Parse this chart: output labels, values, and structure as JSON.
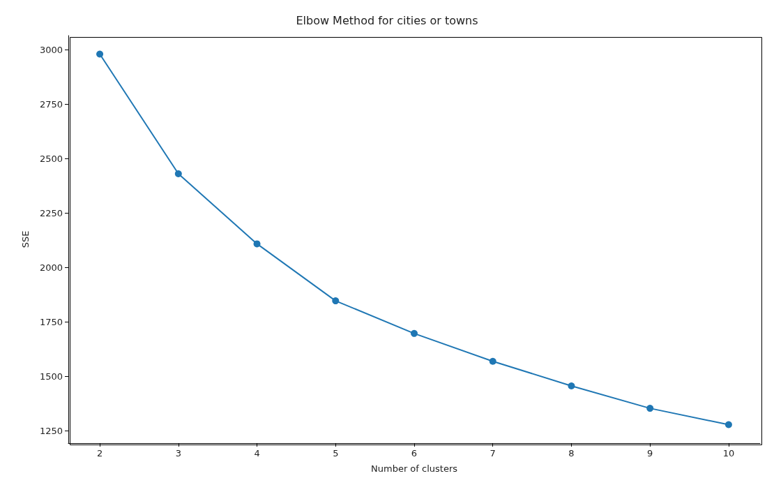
{
  "chart_data": {
    "type": "line",
    "title": "Elbow Method for cities or towns",
    "xlabel": "Number of clusters",
    "ylabel": "SSE",
    "x": [
      2,
      3,
      4,
      5,
      6,
      7,
      8,
      9,
      10
    ],
    "series": [
      {
        "color": "#1f77b4",
        "values": [
          2981,
          2431,
          2109,
          1847,
          1697,
          1569,
          1456,
          1353,
          1278
        ]
      }
    ],
    "xlim": [
      1.6,
      10.4
    ],
    "xticks": [
      2,
      3,
      4,
      5,
      6,
      7,
      8,
      9,
      10
    ],
    "ylim": [
      1193,
      3066
    ],
    "yticks": [
      1250,
      1500,
      1750,
      2000,
      2250,
      2500,
      2750,
      3000
    ],
    "marker": "circle",
    "line_style": "solid",
    "grid": false
  }
}
